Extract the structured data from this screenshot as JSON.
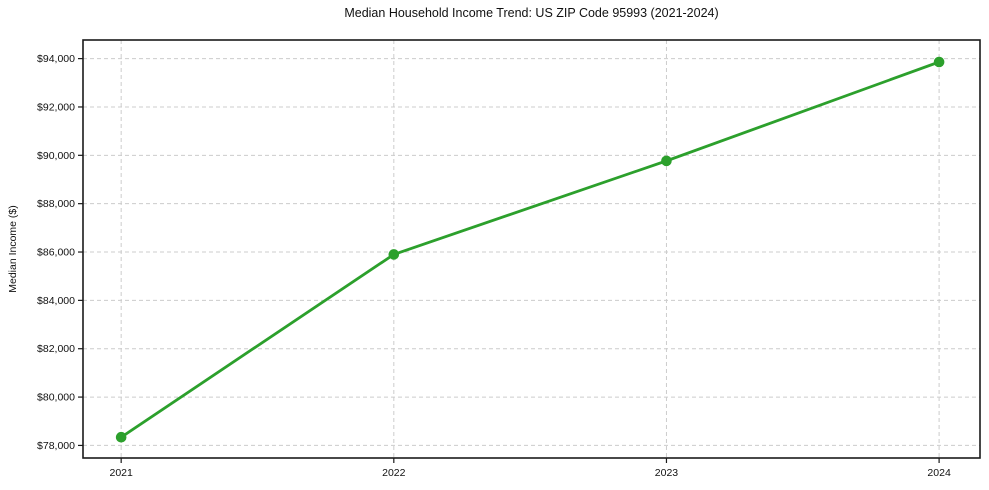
{
  "chart_data": {
    "type": "line",
    "title": "Median Household Income Trend: US ZIP Code 95993 (2021-2024)",
    "xlabel": "",
    "ylabel": "Median Income ($)",
    "x": [
      2021,
      2022,
      2023,
      2024
    ],
    "series": [
      {
        "name": "Median Household Income",
        "values": [
          78340,
          85900,
          89770,
          93860
        ],
        "color": "#2ca02c",
        "marker": "circle",
        "line_width": 2.8,
        "marker_radius": 5.3
      }
    ],
    "xlim": [
      2020.86,
      2024.15
    ],
    "ylim": [
      77480,
      94770
    ],
    "xticks": [
      2021,
      2022,
      2023,
      2024
    ],
    "xtick_labels": [
      "2021",
      "2022",
      "2023",
      "2024"
    ],
    "yticks": [
      78000,
      80000,
      82000,
      84000,
      86000,
      88000,
      90000,
      92000,
      94000
    ],
    "ytick_labels": [
      "$78,000",
      "$80,000",
      "$82,000",
      "$84,000",
      "$86,000",
      "$88,000",
      "$90,000",
      "$92,000",
      "$94,000"
    ],
    "grid": true,
    "grid_style": "dashed",
    "legend": "none",
    "colors": {
      "background": "#ffffff",
      "grid": "#cccccc",
      "spine": "#1a1a1a",
      "tick": "#1a1a1a",
      "tick_label": "#111111",
      "line": "#2ca02c"
    }
  }
}
